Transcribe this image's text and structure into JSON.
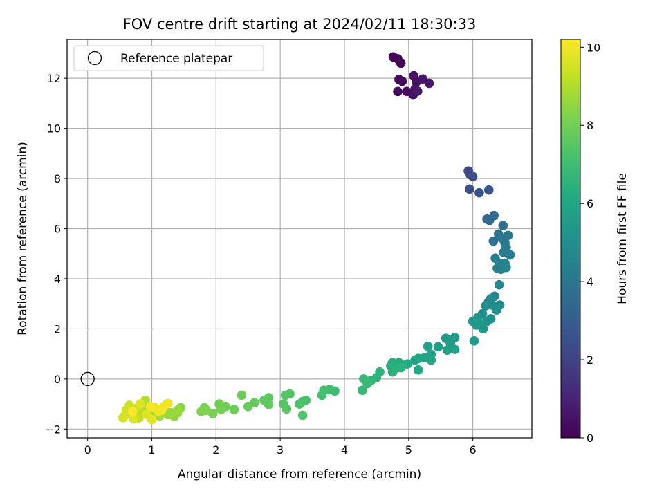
{
  "chart_data": {
    "type": "scatter",
    "title": "FOV centre drift starting at 2024/02/11 18:30:33",
    "xlabel": "Angular distance from reference (arcmin)",
    "ylabel": "Rotation from reference (arcmin)",
    "xlim": [
      -0.32,
      6.92
    ],
    "ylim": [
      -2.35,
      13.55
    ],
    "xticks": [
      0,
      1,
      2,
      3,
      4,
      5,
      6
    ],
    "yticks": [
      -2,
      0,
      2,
      4,
      6,
      8,
      10,
      12
    ],
    "grid": true,
    "legend": {
      "position": "top-left",
      "entries": [
        "Reference platepar"
      ]
    },
    "reference_point": {
      "x": 0,
      "y": 0,
      "label": "Reference platepar"
    },
    "colorbar": {
      "label": "Hours from first FF file",
      "min": 0,
      "max": 10.2,
      "ticks": [
        0,
        2,
        4,
        6,
        8,
        10
      ],
      "colormap": "viridis"
    },
    "points": [
      [
        4.76,
        12.85,
        0.05
      ],
      [
        4.83,
        12.78,
        0.1
      ],
      [
        4.88,
        12.6,
        0.15
      ],
      [
        4.85,
        11.95,
        0.2
      ],
      [
        4.9,
        11.88,
        0.25
      ],
      [
        4.83,
        11.47,
        0.3
      ],
      [
        4.97,
        11.47,
        0.35
      ],
      [
        5.07,
        11.35,
        0.4
      ],
      [
        5.08,
        12.1,
        0.45
      ],
      [
        5.12,
        11.85,
        0.5
      ],
      [
        5.1,
        11.57,
        0.55
      ],
      [
        5.22,
        11.97,
        0.6
      ],
      [
        5.32,
        11.8,
        0.65
      ],
      [
        5.14,
        11.48,
        0.7
      ],
      [
        5.93,
        8.3,
        2.2
      ],
      [
        5.96,
        8.15,
        2.3
      ],
      [
        6.0,
        8.08,
        2.4
      ],
      [
        5.95,
        7.58,
        2.5
      ],
      [
        6.1,
        7.43,
        2.6
      ],
      [
        6.25,
        7.54,
        2.7
      ],
      [
        6.22,
        6.38,
        3.4
      ],
      [
        6.26,
        6.33,
        3.5
      ],
      [
        6.33,
        6.52,
        3.6
      ],
      [
        6.47,
        6.12,
        3.7
      ],
      [
        6.32,
        5.5,
        3.8
      ],
      [
        6.4,
        5.78,
        3.9
      ],
      [
        6.45,
        5.62,
        4.0
      ],
      [
        6.5,
        5.43,
        4.05
      ],
      [
        6.55,
        5.73,
        4.1
      ],
      [
        6.52,
        5.25,
        4.15
      ],
      [
        6.58,
        4.95,
        4.2
      ],
      [
        6.48,
        5.05,
        4.25
      ],
      [
        6.35,
        4.82,
        4.3
      ],
      [
        6.42,
        4.6,
        4.35
      ],
      [
        6.5,
        4.62,
        4.4
      ],
      [
        6.38,
        4.42,
        4.45
      ],
      [
        6.44,
        4.38,
        4.5
      ],
      [
        6.52,
        4.45,
        4.55
      ],
      [
        6.41,
        3.76,
        4.6
      ],
      [
        6.34,
        3.3,
        4.7
      ],
      [
        6.28,
        3.2,
        4.75
      ],
      [
        6.24,
        3.05,
        4.8
      ],
      [
        6.3,
        2.95,
        4.85
      ],
      [
        6.42,
        2.95,
        4.9
      ],
      [
        6.2,
        2.92,
        4.95
      ],
      [
        6.37,
        2.75,
        5.0
      ],
      [
        6.15,
        2.6,
        5.05
      ],
      [
        6.28,
        2.4,
        5.1
      ],
      [
        6.22,
        2.3,
        5.15
      ],
      [
        6.08,
        2.45,
        5.2
      ],
      [
        6.0,
        2.3,
        5.25
      ],
      [
        6.06,
        2.15,
        5.3
      ],
      [
        6.16,
        2.0,
        5.35
      ],
      [
        6.1,
        2.25,
        5.4
      ],
      [
        6.02,
        1.52,
        5.45
      ],
      [
        5.72,
        1.65,
        5.5
      ],
      [
        5.58,
        1.62,
        5.55
      ],
      [
        5.65,
        1.42,
        5.6
      ],
      [
        5.72,
        1.18,
        5.65
      ],
      [
        5.6,
        1.15,
        5.7
      ],
      [
        5.46,
        1.28,
        5.75
      ],
      [
        5.3,
        1.3,
        5.8
      ],
      [
        5.35,
        0.98,
        5.85
      ],
      [
        5.25,
        0.85,
        5.9
      ],
      [
        5.15,
        0.82,
        5.95
      ],
      [
        5.1,
        0.75,
        6.0
      ],
      [
        5.35,
        0.75,
        6.05
      ],
      [
        5.15,
        0.36,
        6.1
      ],
      [
        4.98,
        0.6,
        6.15
      ],
      [
        4.9,
        0.55,
        6.2
      ],
      [
        4.85,
        0.65,
        6.25
      ],
      [
        4.75,
        0.65,
        6.3
      ],
      [
        4.72,
        0.52,
        6.35
      ],
      [
        4.8,
        0.42,
        6.4
      ],
      [
        4.75,
        0.28,
        6.45
      ],
      [
        4.88,
        0.45,
        6.5
      ],
      [
        4.55,
        0.28,
        6.55
      ],
      [
        4.5,
        0.05,
        6.6
      ],
      [
        4.42,
        -0.05,
        6.65
      ],
      [
        4.35,
        -0.12,
        6.7
      ],
      [
        4.3,
        0.0,
        6.75
      ],
      [
        4.28,
        -0.45,
        6.8
      ],
      [
        4.36,
        -0.18,
        6.85
      ],
      [
        3.85,
        -0.48,
        7.0
      ],
      [
        3.77,
        -0.42,
        7.05
      ],
      [
        3.68,
        -0.45,
        7.1
      ],
      [
        3.65,
        -0.65,
        7.15
      ],
      [
        3.4,
        -0.85,
        7.2
      ],
      [
        3.35,
        -0.9,
        7.25
      ],
      [
        3.3,
        -1.0,
        7.3
      ],
      [
        3.35,
        -1.45,
        7.35
      ],
      [
        3.15,
        -0.6,
        7.4
      ],
      [
        3.08,
        -0.65,
        7.45
      ],
      [
        3.05,
        -1.0,
        7.5
      ],
      [
        3.1,
        -1.2,
        7.55
      ],
      [
        2.82,
        -0.75,
        7.6
      ],
      [
        2.75,
        -0.85,
        7.65
      ],
      [
        2.82,
        -1.02,
        7.7
      ],
      [
        2.6,
        -0.95,
        7.75
      ],
      [
        2.5,
        -1.1,
        7.8
      ],
      [
        2.4,
        -0.65,
        7.85
      ],
      [
        2.28,
        -1.22,
        7.9
      ],
      [
        2.15,
        -1.1,
        7.95
      ],
      [
        2.05,
        -1.0,
        8.0
      ],
      [
        2.08,
        -1.22,
        8.05
      ],
      [
        1.95,
        -1.38,
        8.1
      ],
      [
        1.82,
        -1.15,
        8.15
      ],
      [
        1.85,
        -1.25,
        8.2
      ],
      [
        1.77,
        -1.3,
        8.25
      ],
      [
        1.45,
        -1.15,
        8.4
      ],
      [
        1.4,
        -1.35,
        8.45
      ],
      [
        1.35,
        -1.5,
        8.5
      ],
      [
        1.3,
        -1.35,
        8.55
      ],
      [
        1.25,
        -1.42,
        8.6
      ],
      [
        1.4,
        -1.25,
        8.65
      ],
      [
        1.22,
        -1.05,
        8.7
      ],
      [
        1.18,
        -1.12,
        8.75
      ],
      [
        1.12,
        -1.48,
        8.8
      ],
      [
        1.05,
        -1.3,
        8.85
      ],
      [
        1.0,
        -1.22,
        8.9
      ],
      [
        0.95,
        -1.1,
        8.95
      ],
      [
        0.9,
        -0.85,
        9.0
      ],
      [
        0.88,
        -1.25,
        9.05
      ],
      [
        0.85,
        -1.35,
        9.1
      ],
      [
        0.8,
        -1.55,
        9.15
      ],
      [
        0.78,
        -1.15,
        9.2
      ],
      [
        0.75,
        -1.42,
        9.25
      ],
      [
        0.7,
        -1.2,
        9.3
      ],
      [
        0.68,
        -1.35,
        9.35
      ],
      [
        0.65,
        -1.05,
        9.4
      ],
      [
        0.62,
        -1.32,
        9.45
      ],
      [
        0.6,
        -1.25,
        9.5
      ],
      [
        0.58,
        -1.45,
        9.55
      ],
      [
        0.55,
        -1.55,
        9.6
      ],
      [
        0.72,
        -1.6,
        9.65
      ],
      [
        0.82,
        -1.0,
        9.7
      ],
      [
        0.92,
        -1.42,
        9.75
      ],
      [
        1.0,
        -1.62,
        9.8
      ],
      [
        1.05,
        -1.15,
        9.85
      ],
      [
        1.1,
        -1.3,
        9.9
      ],
      [
        1.15,
        -1.25,
        9.95
      ],
      [
        1.25,
        -0.98,
        10.0
      ],
      [
        1.18,
        -1.12,
        10.05
      ],
      [
        0.98,
        -1.1,
        10.1
      ],
      [
        0.7,
        -1.3,
        10.15
      ]
    ]
  }
}
